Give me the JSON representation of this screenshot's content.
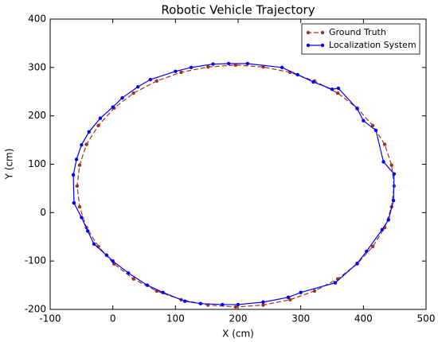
{
  "chart_data": {
    "type": "line",
    "title": "Robotic Vehicle Trajectory",
    "x_label": "X (cm)",
    "y_label": "Y (cm)",
    "xlim": [
      -100,
      500
    ],
    "ylim": [
      -200,
      400
    ],
    "xticks": [
      -100,
      0,
      100,
      200,
      300,
      400,
      500
    ],
    "yticks": [
      -200,
      -100,
      0,
      100,
      200,
      300,
      400
    ],
    "legend": "upper right",
    "grid": false,
    "series": [
      {
        "name": "Ground Truth",
        "color": "#a0321e",
        "dashed": true,
        "x": [
          449,
          445,
          434,
          415,
          390,
          359,
          322,
          283,
          240,
          196,
          152,
          109,
          70,
          33,
          2,
          -23,
          -42,
          -53,
          -57,
          -53,
          -42,
          -23,
          2,
          33,
          70,
          109,
          152,
          196,
          240,
          283,
          322,
          359,
          390,
          415,
          434,
          445,
          449
        ],
        "values": [
          55,
          98,
          141,
          180,
          216,
          247,
          272,
          290,
          301,
          305,
          301,
          290,
          272,
          247,
          216,
          180,
          141,
          98,
          55,
          12,
          -31,
          -70,
          -106,
          -137,
          -162,
          -180,
          -191,
          -195,
          -191,
          -180,
          -162,
          -137,
          -106,
          -70,
          -31,
          12,
          55
        ]
      },
      {
        "name": "Localization System",
        "color": "#0000ff",
        "dashed": false,
        "x": [
          -62,
          -63,
          -58,
          -50,
          -38,
          -20,
          0,
          15,
          40,
          60,
          100,
          125,
          160,
          185,
          215,
          270,
          295,
          320,
          350,
          360,
          390,
          400,
          420,
          432,
          449,
          448,
          440,
          430,
          405,
          390,
          355,
          300,
          280,
          240,
          200,
          175,
          140,
          115,
          80,
          55,
          25,
          0,
          -10,
          -30,
          -40,
          -50,
          -62
        ],
        "values": [
          20,
          78,
          110,
          140,
          167,
          195,
          218,
          237,
          260,
          275,
          292,
          300,
          307,
          308,
          308,
          300,
          285,
          270,
          255,
          257,
          215,
          190,
          170,
          105,
          80,
          25,
          -15,
          -35,
          -80,
          -105,
          -145,
          -165,
          -175,
          -185,
          -190,
          -190,
          -188,
          -183,
          -165,
          -150,
          -125,
          -100,
          -88,
          -65,
          -38,
          -10,
          20
        ]
      }
    ]
  }
}
